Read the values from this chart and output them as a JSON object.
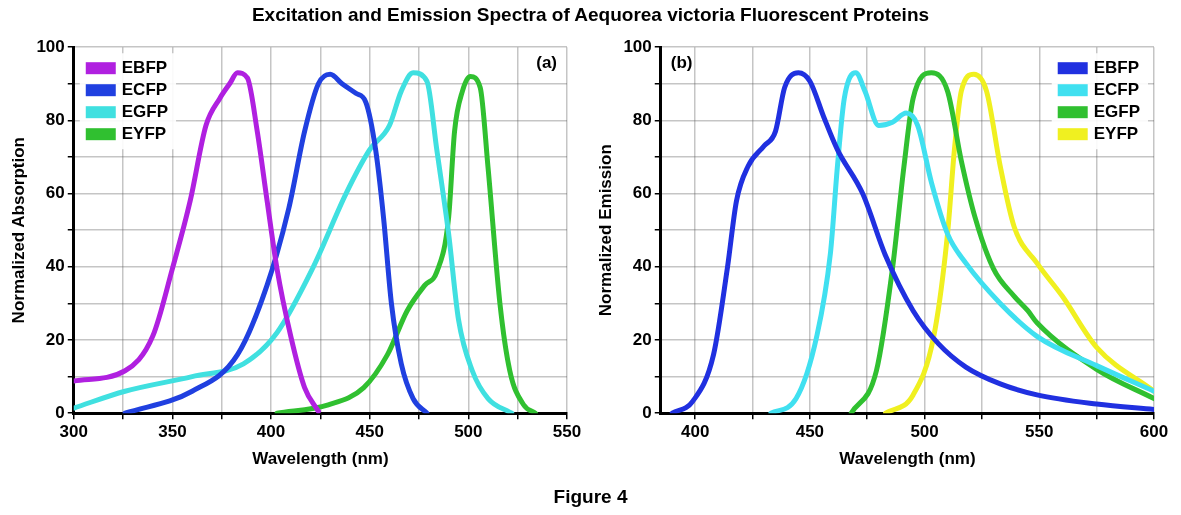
{
  "chart_data": [
    {
      "type": "line",
      "title": "Excitation and Emission Spectra of Aequorea victoria Fluorescent Proteins",
      "xlabel": "Wavelength (nm)",
      "ylabel": "Normalized Absorption",
      "annotations": [
        "(a)"
      ],
      "xlim": [
        300,
        550
      ],
      "xticks": [
        300,
        {
          "value": 325,
          "label": null
        },
        350,
        {
          "value": 375,
          "label": null
        },
        400,
        {
          "value": 425,
          "label": null
        },
        450,
        {
          "value": 475,
          "label": null
        },
        500,
        {
          "value": 525,
          "label": null
        },
        550
      ],
      "ylim": [
        0,
        100
      ],
      "yticks": [
        0,
        {
          "value": 10,
          "label": null
        },
        20,
        {
          "value": 30,
          "label": null
        },
        40,
        {
          "value": 50,
          "label": null
        },
        60,
        {
          "value": 70,
          "label": null
        },
        80,
        {
          "value": 90,
          "label": null
        },
        100
      ],
      "grid": true,
      "legend": "top left",
      "marker": "none",
      "series": [
        {
          "name": "EBFP",
          "color": "#b020e0",
          "x": [
            300,
            326,
            340,
            350,
            359,
            367,
            374,
            379,
            383,
            388,
            393,
            398,
            403,
            410,
            417,
            424
          ],
          "values": [
            8.8,
            11.6,
            21,
            39.5,
            58,
            78.6,
            86,
            90,
            93,
            91.6,
            77,
            58,
            39.5,
            21,
            7,
            0.5
          ]
        },
        {
          "name": "ECFP",
          "color": "#2040e0",
          "x": [
            326,
            360,
            383,
            398,
            409,
            417,
            424,
            430,
            436,
            443,
            448,
            453,
            457,
            461,
            466,
            472,
            479
          ],
          "values": [
            0,
            6,
            16,
            35,
            56,
            77,
            90,
            92.6,
            90,
            87.4,
            85,
            72,
            53.5,
            30,
            13.5,
            4,
            0
          ]
        },
        {
          "name": "EGFP",
          "color": "#40e0e0",
          "x": [
            300,
            326,
            360,
            386,
            403,
            421,
            438,
            450,
            460,
            466,
            472,
            479,
            484,
            490,
            495,
            502,
            510,
            522
          ],
          "values": [
            1.4,
            6,
            10,
            13.5,
            22,
            39.5,
            60,
            72,
            78.6,
            88,
            93,
            90.7,
            72,
            49,
            25.6,
            11.6,
            4,
            0
          ]
        },
        {
          "name": "EYFP",
          "color": "#30c030",
          "x": [
            403,
            429,
            447,
            459,
            469,
            478,
            484,
            490,
            493,
            497,
            501,
            506,
            510,
            516,
            521,
            528,
            534
          ],
          "values": [
            0,
            2.3,
            7,
            16,
            28,
            35,
            38.6,
            53.5,
            77,
            88,
            92,
            89,
            67,
            30,
            11.6,
            2.3,
            0
          ]
        }
      ]
    },
    {
      "type": "line",
      "xlabel": "Wavelength (nm)",
      "ylabel": "Normalized Emission",
      "annotations": [
        "(b)",
        "Figure 4"
      ],
      "xlim": [
        385,
        600
      ],
      "xticks": [
        400,
        {
          "value": 425,
          "label": null
        },
        450,
        {
          "value": 475,
          "label": null
        },
        500,
        {
          "value": 525,
          "label": null
        },
        550,
        {
          "value": 575,
          "label": null
        },
        600
      ],
      "ylim": [
        0,
        100
      ],
      "yticks": [
        0,
        {
          "value": 10,
          "label": null
        },
        20,
        {
          "value": 30,
          "label": null
        },
        40,
        {
          "value": 50,
          "label": null
        },
        60,
        {
          "value": 70,
          "label": null
        },
        80,
        {
          "value": 90,
          "label": null
        },
        100
      ],
      "grid": true,
      "legend": "top right",
      "marker": "none",
      "series": [
        {
          "name": "EBFP",
          "color": "#2030e0",
          "x": [
            390,
            399,
            408,
            414,
            418,
            423,
            430,
            435,
            439,
            445,
            450,
            456,
            462,
            473,
            483,
            495,
            506,
            518,
            533,
            549,
            575,
            600
          ],
          "values": [
            0,
            3.3,
            16,
            39.5,
            58,
            67.4,
            73,
            77,
            89,
            93,
            90.7,
            81,
            72,
            60,
            43,
            28,
            19,
            12.6,
            8,
            5,
            2.5,
            1
          ]
        },
        {
          "name": "ECFP",
          "color": "#40e0f0",
          "x": [
            433,
            444,
            453,
            459,
            462,
            465,
            470,
            474,
            480,
            486,
            492,
            497,
            503,
            510,
            518,
            533,
            549,
            575,
            600
          ],
          "values": [
            0,
            4,
            21,
            44,
            67.4,
            86,
            93,
            88,
            78.6,
            79.5,
            82,
            78.6,
            63,
            49,
            41,
            30,
            21,
            13,
            6
          ]
        },
        {
          "name": "EGFP",
          "color": "#30c030",
          "x": [
            468,
            479,
            486,
            491,
            495,
            503,
            510,
            516,
            522,
            530,
            539,
            545,
            549,
            575,
            600
          ],
          "values": [
            0,
            11.6,
            39.5,
            67.4,
            86,
            93,
            88,
            69,
            53.5,
            39.5,
            32,
            28,
            24.7,
            12,
            4
          ]
        },
        {
          "name": "EYFP",
          "color": "#f0f020",
          "x": [
            483,
            495,
            504,
            510,
            513,
            516,
            521.5,
            527,
            533,
            539,
            549,
            560,
            575,
            600
          ],
          "values": [
            0,
            5,
            21,
            49,
            72,
            88,
            92.6,
            88,
            67.4,
            51,
            41,
            32,
            18,
            6
          ]
        }
      ]
    }
  ]
}
